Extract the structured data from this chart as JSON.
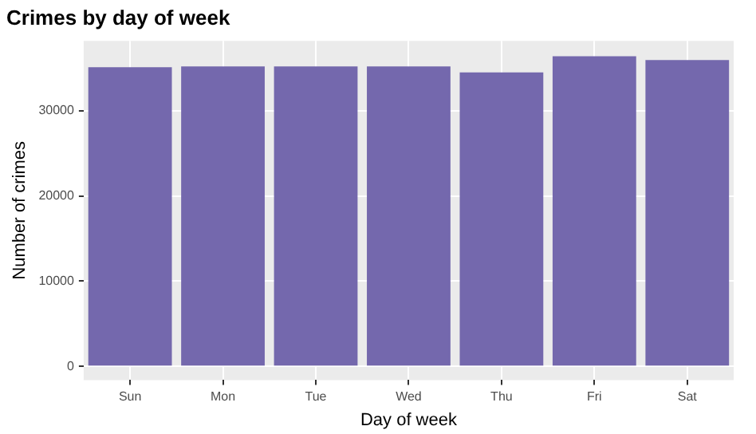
{
  "chart_data": {
    "type": "bar",
    "title": "Crimes by day of week",
    "xlabel": "Day of week",
    "ylabel": "Number of crimes",
    "categories": [
      "Sun",
      "Mon",
      "Tue",
      "Wed",
      "Thu",
      "Fri",
      "Sat"
    ],
    "values": [
      35100,
      35200,
      35200,
      35200,
      34500,
      36400,
      35950
    ],
    "color": "#7468ad",
    "ylim": [
      -1600,
      38200
    ],
    "yticks": [
      0,
      10000,
      20000,
      30000
    ],
    "grid": true
  }
}
